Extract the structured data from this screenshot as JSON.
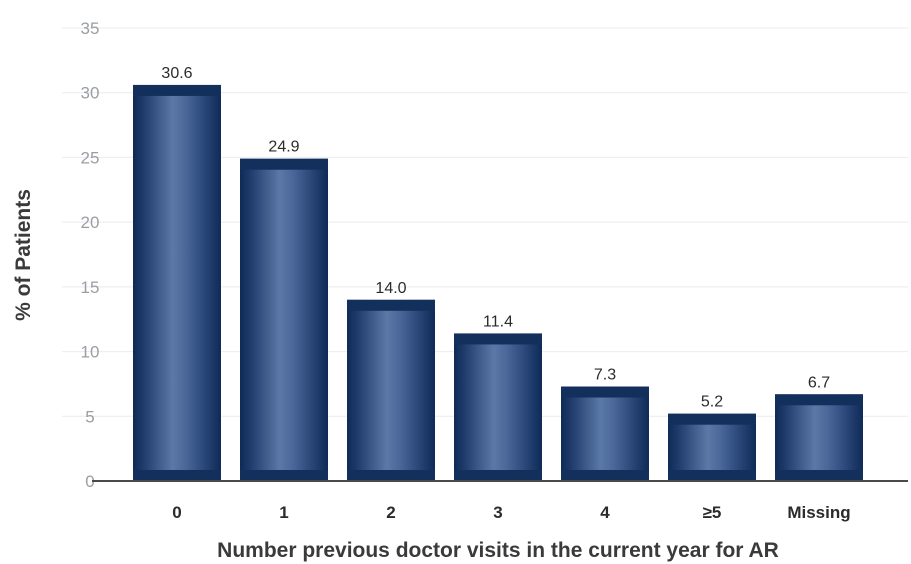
{
  "chart_data": {
    "type": "bar",
    "categories": [
      "0",
      "1",
      "2",
      "3",
      "4",
      "≥5",
      "Missing"
    ],
    "values": [
      30.6,
      24.9,
      14.0,
      11.4,
      7.3,
      5.2,
      6.7
    ],
    "value_labels": [
      "30.6",
      "24.9",
      "14.0",
      "11.4",
      "7.3",
      "5.2",
      "6.7"
    ],
    "title": "",
    "xlabel": "Number previous doctor visits in the current year for AR",
    "ylabel": "% of Patients",
    "ylim": [
      0,
      35
    ],
    "yticks": [
      "0",
      "5",
      "10",
      "15",
      "20",
      "25",
      "30",
      "35"
    ],
    "grid": true,
    "legend": "none",
    "colors": {
      "bar_dark": "#0f2a55",
      "bar_light": "#5b78a6",
      "bar_cap": "#13305d"
    }
  }
}
